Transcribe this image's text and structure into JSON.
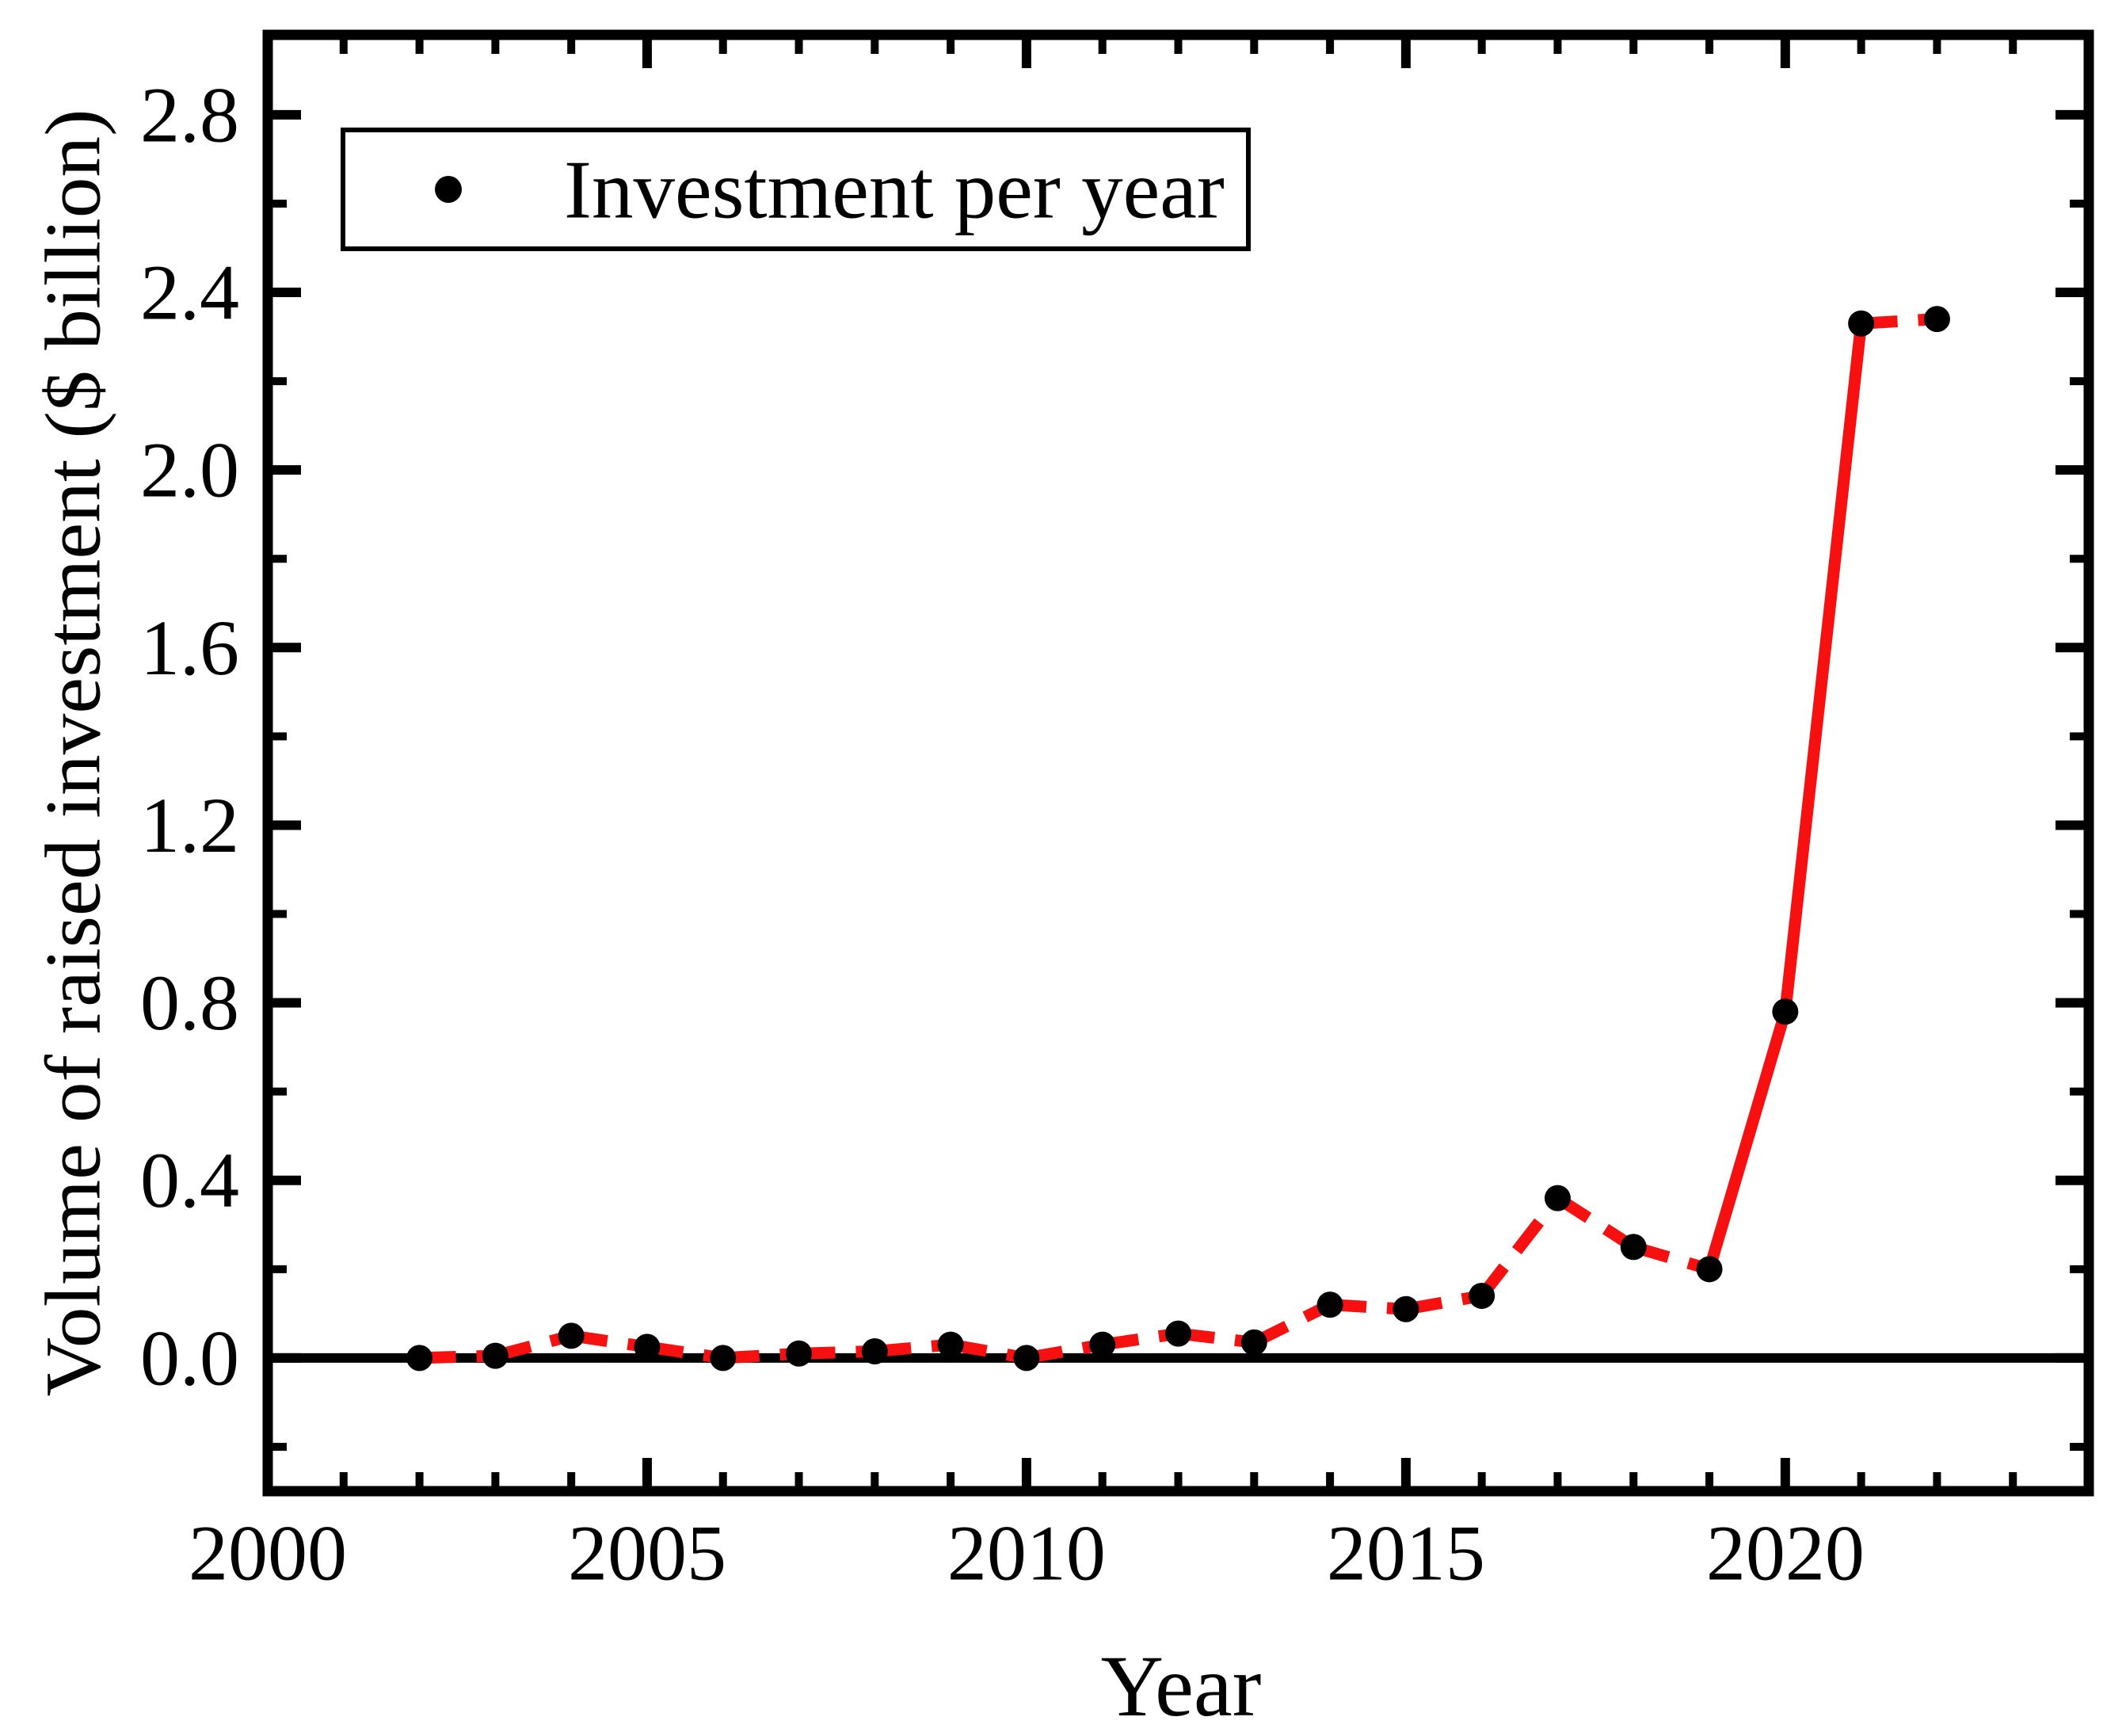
{
  "figure": {
    "background": "#ffffff",
    "axis_color": "#000000"
  },
  "chart_data": {
    "type": "line",
    "title": "",
    "xlabel": "Year",
    "ylabel": "Volume of raised investment ($ billion)",
    "xlim": [
      2000,
      2024
    ],
    "ylim": [
      -0.3,
      2.98
    ],
    "grid": false,
    "zero_line": true,
    "legend": {
      "position": "top-left",
      "entries": [
        "Investment per year"
      ]
    },
    "x_major_ticks": {
      "values": [
        2000,
        2005,
        2010,
        2015,
        2020
      ],
      "labels": [
        "2000",
        "2005",
        "2010",
        "2015",
        "2020"
      ]
    },
    "x_minor_ticks": [
      2001,
      2002,
      2003,
      2004,
      2006,
      2007,
      2008,
      2009,
      2011,
      2012,
      2013,
      2014,
      2016,
      2017,
      2018,
      2019,
      2021,
      2022,
      2023
    ],
    "y_major_ticks": {
      "values": [
        0.0,
        0.4,
        0.8,
        1.2,
        1.6,
        2.0,
        2.4,
        2.8
      ],
      "labels": [
        "0.0",
        "0.4",
        "0.8",
        "1.2",
        "1.6",
        "2.0",
        "2.4",
        "2.8"
      ]
    },
    "y_minor_ticks": [
      -0.2,
      0.2,
      0.6,
      1.0,
      1.4,
      1.8,
      2.2,
      2.6
    ],
    "series": [
      {
        "name": "Investment per year",
        "x": [
          2002,
          2003,
          2004,
          2005,
          2006,
          2007,
          2008,
          2009,
          2010,
          2011,
          2012,
          2013,
          2014,
          2015,
          2016,
          2017,
          2018,
          2019,
          2020,
          2021,
          2022
        ],
        "y": [
          0.0,
          0.005,
          0.05,
          0.025,
          0.0,
          0.01,
          0.015,
          0.03,
          0.0,
          0.03,
          0.055,
          0.035,
          0.12,
          0.11,
          0.14,
          0.36,
          0.25,
          0.2,
          0.78,
          2.33,
          2.34
        ],
        "line_color": "#f61010",
        "line_style": "dashed",
        "marker": "circle",
        "marker_color": "#000000",
        "marker_size": 33
      }
    ]
  }
}
